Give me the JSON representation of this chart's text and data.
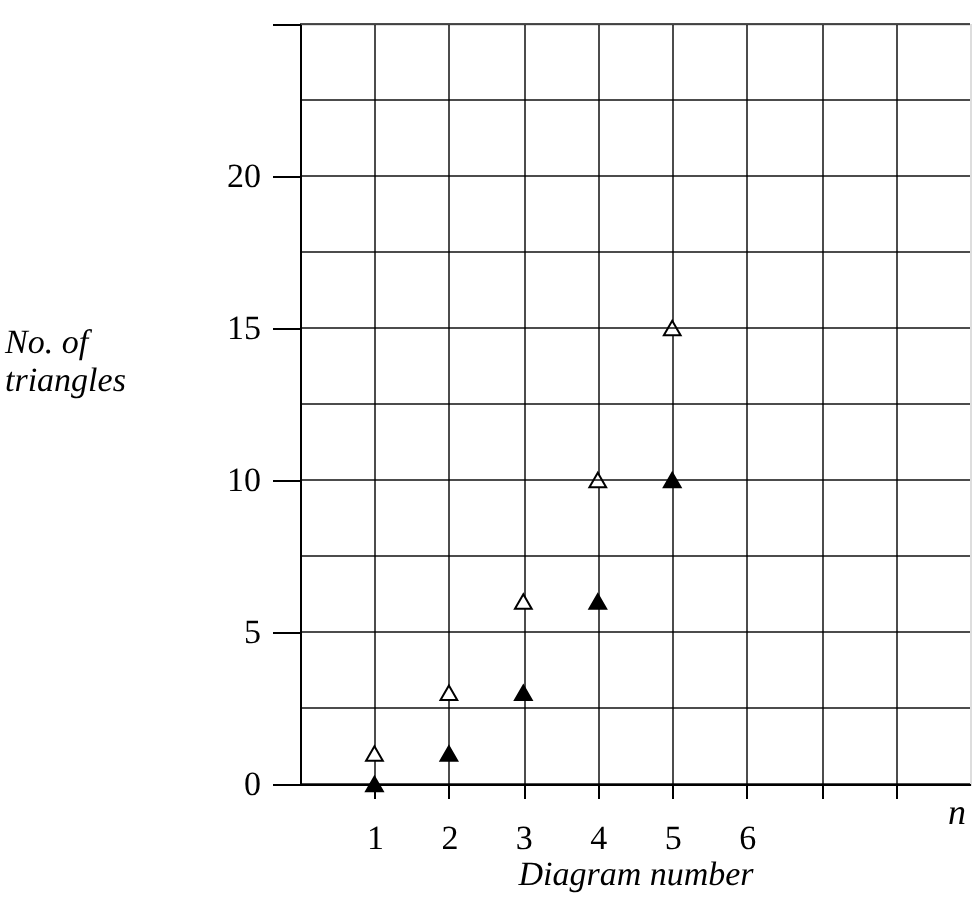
{
  "chart_data": {
    "type": "scatter",
    "xlabel": "Diagram number",
    "ylabel": "No. of triangles",
    "x": [
      1,
      2,
      3,
      4,
      5
    ],
    "series": [
      {
        "color": "#ffffff",
        "values": [
          1,
          3,
          6,
          10,
          15
        ]
      },
      {
        "color": "#000000",
        "values": [
          0,
          1,
          3,
          6,
          10
        ]
      }
    ],
    "xlim": [
      0,
      9
    ],
    "ylim": [
      0,
      25
    ],
    "xticks": [
      1,
      2,
      3,
      4,
      5,
      6,
      {
        "value": 7,
        "label": null
      },
      {
        "value": 8,
        "label": null
      }
    ],
    "yticks": [
      0,
      {
        "value": 2.5,
        "label": null
      },
      5,
      {
        "value": 7.5,
        "label": null
      },
      10,
      {
        "value": 12.5,
        "label": null
      },
      15,
      {
        "value": 17.5,
        "label": null
      },
      20,
      {
        "value": 22.5,
        "label": null
      },
      {
        "value": 25,
        "label": null
      }
    ],
    "annotations": [
      "n"
    ],
    "marker": "triangle",
    "grid": true
  }
}
